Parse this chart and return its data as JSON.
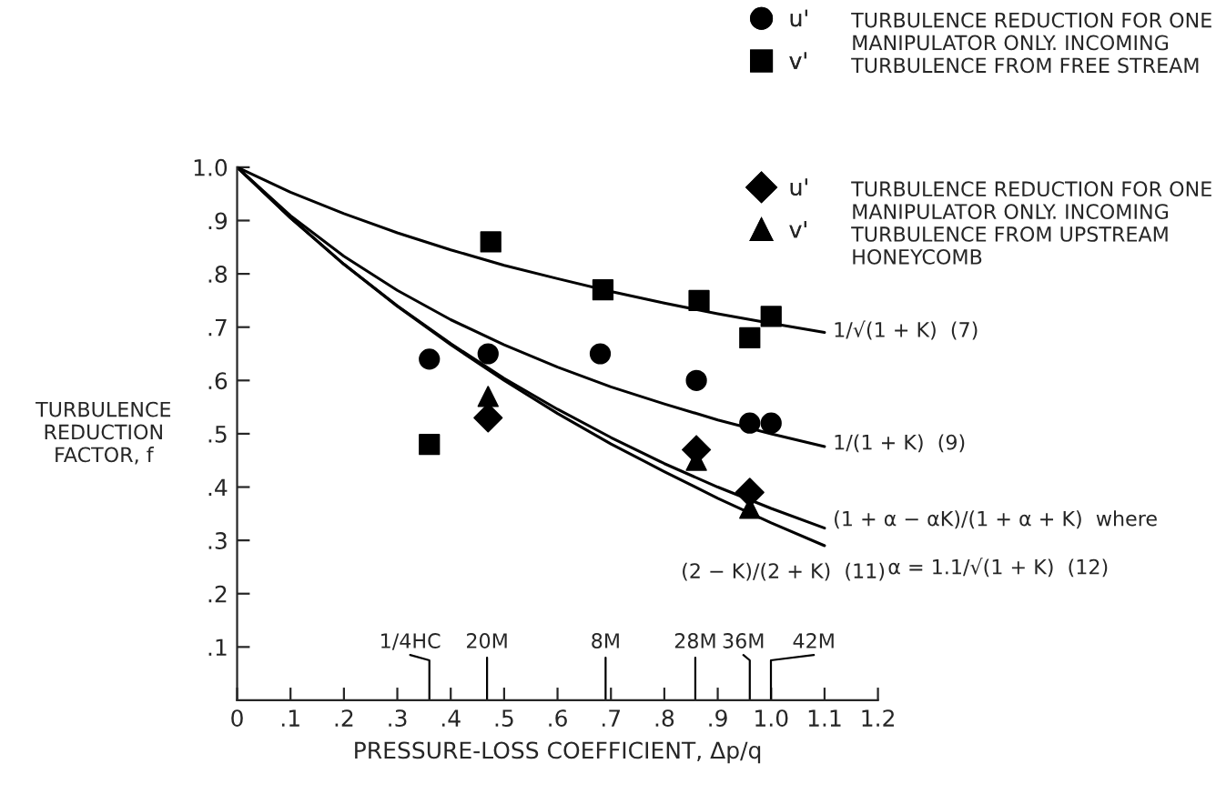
{
  "chart_data": {
    "type": "scatter",
    "xlabel": "PRESSURE-LOSS COEFFICIENT, Δp/q",
    "ylabel": "TURBULENCE\nREDUCTION\nFACTOR, f",
    "xlim": [
      0,
      1.2
    ],
    "ylim": [
      0,
      1.0
    ],
    "xticks": [
      {
        "value": 0,
        "label": "0"
      },
      {
        "value": 0.1,
        "label": ".1"
      },
      {
        "value": 0.2,
        "label": ".2"
      },
      {
        "value": 0.3,
        "label": ".3"
      },
      {
        "value": 0.4,
        "label": ".4"
      },
      {
        "value": 0.5,
        "label": ".5"
      },
      {
        "value": 0.6,
        "label": ".6"
      },
      {
        "value": 0.7,
        "label": ".7"
      },
      {
        "value": 0.8,
        "label": ".8"
      },
      {
        "value": 0.9,
        "label": ".9"
      },
      {
        "value": 1.0,
        "label": "1.0"
      },
      {
        "value": 1.1,
        "label": "1.1"
      },
      {
        "value": 1.2,
        "label": "1.2"
      }
    ],
    "yticks": [
      {
        "value": 0.1,
        "label": ".1"
      },
      {
        "value": 0.2,
        "label": ".2"
      },
      {
        "value": 0.3,
        "label": ".3"
      },
      {
        "value": 0.4,
        "label": ".4"
      },
      {
        "value": 0.5,
        "label": ".5"
      },
      {
        "value": 0.6,
        "label": ".6"
      },
      {
        "value": 0.7,
        "label": ".7"
      },
      {
        "value": 0.8,
        "label": ".8"
      },
      {
        "value": 0.9,
        "label": ".9"
      },
      {
        "value": 1.0,
        "label": "1.0"
      }
    ],
    "grid": false,
    "legend": "top right",
    "series": [
      {
        "name": "u'",
        "marker": "circle",
        "color": "#000000",
        "x": [
          0.36,
          0.47,
          0.68,
          0.86,
          0.96,
          1.0
        ],
        "values": [
          0.64,
          0.65,
          0.65,
          0.6,
          0.52,
          0.52
        ]
      },
      {
        "name": "v'",
        "marker": "square",
        "color": "#000000",
        "x": [
          0.36,
          0.475,
          0.685,
          0.865,
          0.96,
          1.0
        ],
        "values": [
          0.48,
          0.86,
          0.77,
          0.75,
          0.68,
          0.72
        ]
      },
      {
        "name": "u'",
        "marker": "diamond",
        "color": "#000000",
        "x": [
          0.47,
          0.86,
          0.96
        ],
        "values": [
          0.53,
          0.47,
          0.39
        ]
      },
      {
        "name": "v'",
        "marker": "triangle",
        "color": "#000000",
        "x": [
          0.47,
          0.86,
          0.96
        ],
        "values": [
          0.57,
          0.45,
          0.36
        ]
      },
      {
        "type": "line",
        "marker": "none",
        "color": "#000000",
        "x": [
          0,
          0.1,
          0.2,
          0.3,
          0.4,
          0.5,
          0.6,
          0.7,
          0.8,
          0.9,
          1.0,
          1.1
        ],
        "values": [
          1,
          0.953,
          0.913,
          0.877,
          0.845,
          0.816,
          0.791,
          0.767,
          0.745,
          0.725,
          0.707,
          0.69
        ]
      },
      {
        "type": "line",
        "marker": "none",
        "color": "#000000",
        "x": [
          0,
          0.1,
          0.2,
          0.3,
          0.4,
          0.5,
          0.6,
          0.7,
          0.8,
          0.9,
          1.0,
          1.1
        ],
        "values": [
          1,
          0.909,
          0.833,
          0.769,
          0.714,
          0.667,
          0.625,
          0.588,
          0.556,
          0.526,
          0.5,
          0.476
        ]
      },
      {
        "type": "line",
        "marker": "none",
        "color": "#000000",
        "x": [
          0,
          0.1,
          0.2,
          0.3,
          0.4,
          0.5,
          0.6,
          0.7,
          0.8,
          0.9,
          1.0,
          1.1
        ],
        "values": [
          1,
          0.905,
          0.818,
          0.74,
          0.669,
          0.604,
          0.546,
          0.493,
          0.444,
          0.4,
          0.36,
          0.323
        ]
      },
      {
        "type": "line",
        "marker": "none",
        "color": "#000000",
        "x": [
          0,
          0.1,
          0.2,
          0.3,
          0.4,
          0.5,
          0.6,
          0.7,
          0.8,
          0.9,
          1.0,
          1.1
        ],
        "values": [
          1,
          0.905,
          0.818,
          0.739,
          0.667,
          0.6,
          0.538,
          0.481,
          0.429,
          0.379,
          0.333,
          0.29
        ]
      }
    ],
    "annotations": [
      "TURBULENCE REDUCTION FOR ONE\nMANIPULATOR ONLY. INCOMING\nTURBULENCE FROM FREE STREAM",
      "TURBULENCE REDUCTION FOR ONE\nMANIPULATOR ONLY. INCOMING\nTURBULENCE FROM UPSTREAM\nHONEYCOMB",
      "1/√(1 + K)  (7)",
      "1/(1 + K)  (9)",
      "(1 + α − αK)/(1 + α + K)  where",
      "(2 − K)/(2 + K)  (11)",
      "α = 1.1/√(1 + K)  (12)",
      "1/4HC",
      "20M",
      "8M",
      "28M",
      "36M",
      "42M"
    ]
  }
}
